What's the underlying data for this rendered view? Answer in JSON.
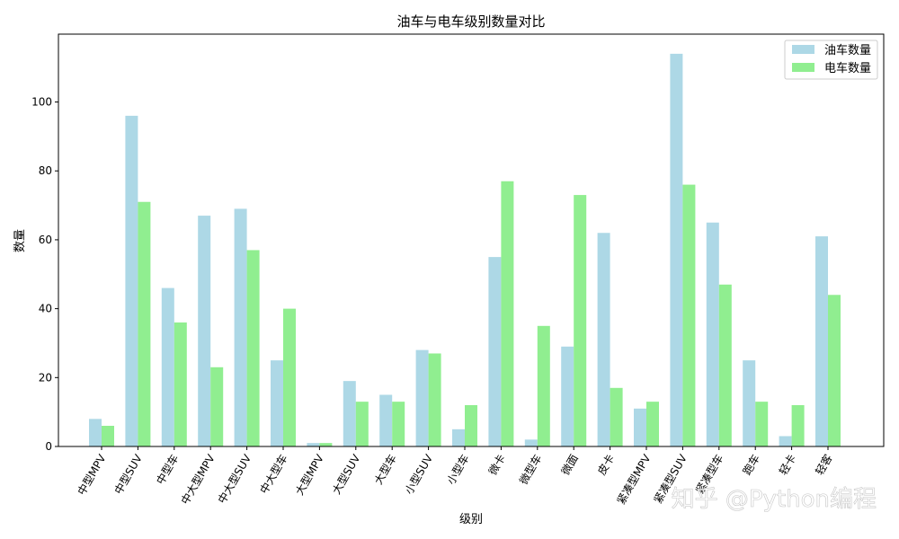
{
  "chart_data": {
    "type": "bar",
    "title": "油车与电车级别数量对比",
    "xlabel": "级别",
    "ylabel": "数量",
    "categories": [
      "中型MPV",
      "中型SUV",
      "中型车",
      "中大型MPV",
      "中大型SUV",
      "中大型车",
      "大型MPV",
      "大型SUV",
      "大型车",
      "小型SUV",
      "小型车",
      "微卡",
      "微型车",
      "微面",
      "皮卡",
      "紧凑型MPV",
      "紧凑型SUV",
      "紧凑型车",
      "跑车",
      "轻卡",
      "轻客"
    ],
    "series": [
      {
        "name": "油车数量",
        "color": "#add8e6",
        "values": [
          8,
          96,
          46,
          67,
          69,
          25,
          1,
          19,
          15,
          28,
          5,
          55,
          2,
          29,
          62,
          11,
          114,
          65,
          25,
          3,
          61
        ]
      },
      {
        "name": "电车数量",
        "color": "#90ee90",
        "values": [
          6,
          71,
          36,
          23,
          57,
          40,
          1,
          13,
          13,
          27,
          12,
          77,
          35,
          73,
          17,
          13,
          76,
          47,
          13,
          12,
          44
        ]
      }
    ],
    "ylim": [
      0,
      119.7
    ],
    "yticks": [
      0,
      20,
      40,
      60,
      80,
      100
    ],
    "legend": "top-right",
    "grid": false
  },
  "watermark": "知乎 @Python编程"
}
